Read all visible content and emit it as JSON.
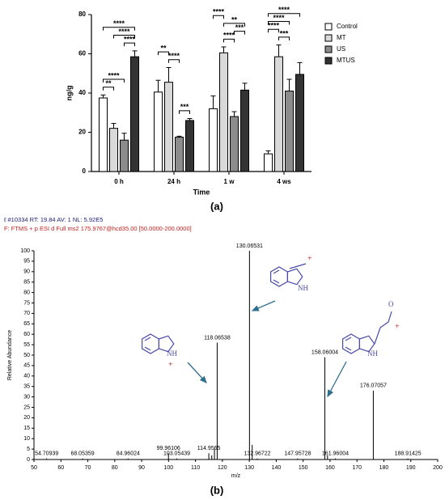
{
  "chart_data": [
    {
      "type": "grouped_bar_errors",
      "panel_label": "(a)",
      "ylabel": "ng/g",
      "xlabel": "Time",
      "categories": [
        "0 h",
        "24 h",
        "1 w",
        "4 ws"
      ],
      "ylim": [
        0,
        80
      ],
      "yticks": [
        0,
        20,
        40,
        60,
        80
      ],
      "legend": "right",
      "series": [
        {
          "name": "Control",
          "color": "#ffffff",
          "values": [
            37.5,
            40.5,
            32,
            9
          ],
          "errors": [
            1.5,
            6,
            6.5,
            1.5
          ]
        },
        {
          "name": "MT",
          "color": "#d9d9d9",
          "values": [
            22,
            45.5,
            60.5,
            58.5
          ],
          "errors": [
            2.5,
            7.5,
            3,
            6
          ]
        },
        {
          "name": "US",
          "color": "#8c8c8c",
          "values": [
            16,
            17.5,
            28,
            41
          ],
          "errors": [
            3.5,
            0.5,
            2.5,
            6
          ]
        },
        {
          "name": "MTUS",
          "color": "#333333",
          "values": [
            58.5,
            26,
            41.5,
            49.5
          ],
          "errors": [
            3,
            1,
            3.5,
            6
          ]
        }
      ],
      "brackets": [
        {
          "category": "0 h",
          "between": [
            "Control",
            "MT"
          ],
          "label": "**"
        },
        {
          "category": "0 h",
          "between": [
            "Control",
            "US"
          ],
          "label": "****"
        },
        {
          "category": "0 h",
          "between": [
            "US",
            "MTUS"
          ],
          "label": "****"
        },
        {
          "category": "0 h",
          "between": [
            "MT",
            "MTUS"
          ],
          "label": "****"
        },
        {
          "category": "0 h",
          "between": [
            "Control",
            "MTUS"
          ],
          "label": "****"
        },
        {
          "category": "24 h",
          "between": [
            "US",
            "MTUS"
          ],
          "label": "***"
        },
        {
          "category": "24 h",
          "between": [
            "MT",
            "US"
          ],
          "label": "****"
        },
        {
          "category": "24 h",
          "between": [
            "Control",
            "MT"
          ],
          "label": "**"
        },
        {
          "category": "1 w",
          "between": [
            "MT",
            "US"
          ],
          "label": "****"
        },
        {
          "category": "1 w",
          "between": [
            "US",
            "MTUS"
          ],
          "label": "***"
        },
        {
          "category": "1 w",
          "between": [
            "MT",
            "MTUS"
          ],
          "label": "**"
        },
        {
          "category": "1 w",
          "between": [
            "Control",
            "MT"
          ],
          "label": "****"
        },
        {
          "category": "4 ws",
          "between": [
            "MT",
            "US"
          ],
          "label": "***"
        },
        {
          "category": "4 ws",
          "between": [
            "Control",
            "MT"
          ],
          "label": "****"
        },
        {
          "category": "4 ws",
          "between": [
            "Control",
            "US"
          ],
          "label": "****"
        },
        {
          "category": "4 ws",
          "between": [
            "Control",
            "MTUS"
          ],
          "label": "****"
        }
      ]
    },
    {
      "type": "spectrum",
      "panel_label": "(b)",
      "title": "ℓ #10334  RT: 19.84  AV: 1  NL: 5.92E5",
      "subtitle": "F: FTMS + p ESI d Full ms2 175.9767@hcd35.00 [50.0000-200.0000]",
      "xlabel": "m/z",
      "ylabel": "Relative Abundance",
      "xlim": [
        50,
        200
      ],
      "xticks": [
        50,
        60,
        70,
        80,
        90,
        100,
        110,
        120,
        130,
        140,
        150,
        160,
        170,
        180,
        190,
        200
      ],
      "ylim": [
        0,
        100
      ],
      "yticks": [
        0,
        5,
        10,
        15,
        20,
        25,
        30,
        35,
        40,
        45,
        50,
        55,
        60,
        65,
        70,
        75,
        80,
        85,
        90,
        95,
        100
      ],
      "color": "#000000",
      "peaks": {
        "x": [
          54.70939,
          68.05359,
          84.96024,
          99.96106,
          103.05439,
          114.9565,
          118.06538,
          130.06531,
          132.96722,
          147.95728,
          158.06004,
          161.96004,
          176.07057,
          188.91425
        ],
        "values": [
          0.5,
          0.5,
          0.5,
          3,
          0.5,
          3,
          56,
          100,
          0.5,
          0.5,
          49,
          0.5,
          33,
          0.5
        ]
      },
      "minor_peaks": {
        "x": [
          116.05,
          117.05,
          131.07,
          159.06
        ],
        "values": [
          2,
          5,
          7,
          2
        ]
      }
    }
  ],
  "structures": [
    {
      "labels": [
        "NH",
        "+"
      ]
    },
    {
      "labels": [
        "NH",
        "+"
      ]
    },
    {
      "labels": [
        "NH",
        "O",
        "+"
      ]
    }
  ]
}
